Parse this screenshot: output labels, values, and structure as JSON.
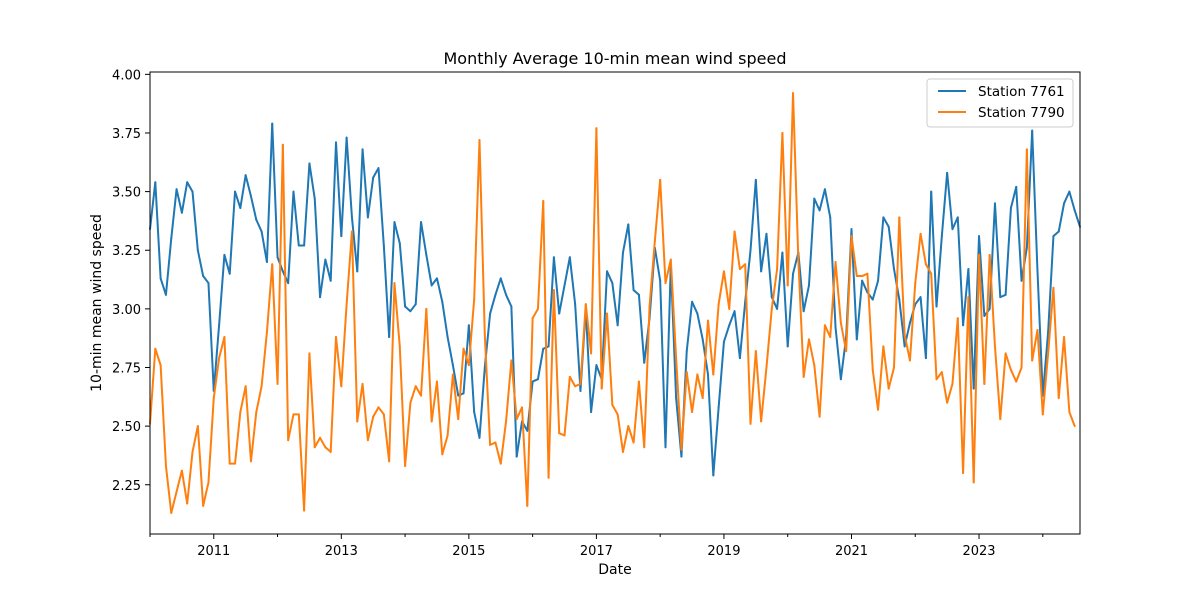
{
  "colors": {
    "series_1": "#1f77b4",
    "series_2": "#ff7f0e",
    "axes": "#000000",
    "background": "#ffffff",
    "legend_border": "#cccccc"
  },
  "chart_data": {
    "type": "line",
    "title": "Monthly Average 10-min mean wind speed",
    "xlabel": "Date",
    "ylabel": "10-min mean wind speed",
    "xlim": [
      "2010-01",
      "2024-08"
    ],
    "ylim": [
      2.04,
      4.01
    ],
    "grid": false,
    "legend_position": "top-right",
    "x_ticks": [
      "2011",
      "2013",
      "2015",
      "2017",
      "2019",
      "2021",
      "2023"
    ],
    "y_ticks": [
      "2.25",
      "2.50",
      "2.75",
      "3.00",
      "3.25",
      "3.50",
      "3.75",
      "4.00"
    ],
    "x_start": "2010-01",
    "x_step": "1 month",
    "series": [
      {
        "name": "Station 7761",
        "values": [
          3.34,
          3.54,
          3.13,
          3.06,
          3.3,
          3.51,
          3.41,
          3.54,
          3.5,
          3.25,
          3.14,
          3.11,
          2.65,
          2.93,
          3.23,
          3.15,
          3.5,
          3.43,
          3.57,
          3.48,
          3.38,
          3.33,
          3.2,
          3.79,
          3.22,
          3.16,
          3.11,
          3.5,
          3.27,
          3.27,
          3.62,
          3.47,
          3.05,
          3.21,
          3.12,
          3.71,
          3.31,
          3.73,
          3.39,
          3.16,
          3.68,
          3.39,
          3.56,
          3.6,
          3.27,
          2.88,
          3.37,
          3.28,
          3.01,
          2.99,
          3.02,
          3.37,
          3.23,
          3.1,
          3.13,
          3.03,
          2.88,
          2.76,
          2.63,
          2.64,
          2.93,
          2.56,
          2.45,
          2.75,
          2.98,
          3.06,
          3.13,
          3.06,
          3.01,
          2.37,
          2.52,
          2.48,
          2.69,
          2.7,
          2.83,
          2.84,
          3.22,
          2.98,
          3.1,
          3.22,
          3.02,
          2.65,
          3.0,
          2.56,
          2.76,
          2.7,
          3.16,
          3.11,
          2.93,
          3.24,
          3.36,
          3.08,
          3.06,
          2.77,
          2.96,
          3.26,
          3.12,
          2.41,
          3.19,
          2.62,
          2.37,
          2.82,
          3.03,
          2.98,
          2.87,
          2.72,
          2.29,
          2.58,
          2.86,
          2.93,
          2.99,
          2.79,
          3.03,
          3.25,
          3.55,
          3.16,
          3.32,
          3.05,
          3.0,
          3.24,
          2.84,
          3.15,
          3.24,
          2.99,
          3.1,
          3.47,
          3.42,
          3.51,
          3.39,
          2.92,
          2.7,
          2.88,
          3.34,
          2.87,
          3.12,
          3.07,
          3.04,
          3.12,
          3.39,
          3.35,
          3.17,
          3.04,
          2.84,
          2.94,
          3.02,
          3.05,
          2.79,
          3.5,
          3.01,
          3.31,
          3.58,
          3.34,
          3.39,
          2.93,
          3.17,
          2.66,
          3.31,
          2.97,
          3.0,
          3.45,
          3.05,
          3.06,
          3.43,
          3.52,
          3.12,
          3.26,
          3.76,
          3.16,
          2.63,
          2.9,
          3.31,
          3.33,
          3.45,
          3.5,
          3.42,
          3.35
        ]
      },
      {
        "name": "Station 7790",
        "values": [
          2.51,
          2.83,
          2.76,
          2.33,
          2.13,
          2.22,
          2.31,
          2.17,
          2.39,
          2.5,
          2.16,
          2.26,
          2.62,
          2.79,
          2.88,
          2.34,
          2.34,
          2.56,
          2.67,
          2.35,
          2.56,
          2.67,
          2.9,
          3.19,
          2.68,
          3.7,
          2.44,
          2.55,
          2.55,
          2.14,
          2.81,
          2.41,
          2.45,
          2.41,
          2.39,
          2.88,
          2.67,
          3.02,
          3.33,
          2.52,
          2.68,
          2.44,
          2.54,
          2.58,
          2.55,
          2.35,
          3.11,
          2.84,
          2.33,
          2.6,
          2.67,
          2.63,
          3.0,
          2.52,
          2.69,
          2.38,
          2.46,
          2.72,
          2.53,
          2.83,
          2.76,
          3.04,
          3.72,
          2.89,
          2.42,
          2.43,
          2.34,
          2.52,
          2.78,
          2.53,
          2.58,
          2.16,
          2.96,
          3.0,
          3.46,
          2.28,
          3.08,
          2.47,
          2.46,
          2.71,
          2.67,
          2.68,
          3.02,
          2.81,
          3.77,
          2.66,
          2.98,
          2.59,
          2.55,
          2.39,
          2.5,
          2.43,
          2.69,
          2.41,
          3.01,
          3.29,
          3.55,
          3.11,
          3.21,
          2.79,
          2.4,
          2.73,
          2.56,
          2.72,
          2.62,
          2.95,
          2.72,
          3.02,
          3.16,
          3.0,
          3.33,
          3.17,
          3.19,
          2.51,
          2.82,
          2.52,
          2.75,
          3.0,
          3.17,
          3.75,
          3.1,
          3.92,
          3.21,
          2.71,
          2.87,
          2.76,
          2.54,
          2.93,
          2.88,
          3.2,
          2.94,
          2.82,
          3.31,
          3.14,
          3.14,
          3.15,
          2.74,
          2.57,
          2.84,
          2.66,
          2.75,
          3.39,
          2.89,
          2.78,
          3.11,
          3.32,
          3.19,
          3.15,
          2.7,
          2.73,
          2.6,
          2.68,
          2.96,
          2.3,
          3.05,
          2.26,
          3.23,
          2.68,
          3.23,
          2.84,
          2.53,
          2.81,
          2.74,
          2.69,
          2.75,
          3.68,
          2.78,
          2.91,
          2.55,
          2.81,
          3.09,
          2.62,
          2.88,
          2.56,
          2.5
        ]
      }
    ]
  }
}
